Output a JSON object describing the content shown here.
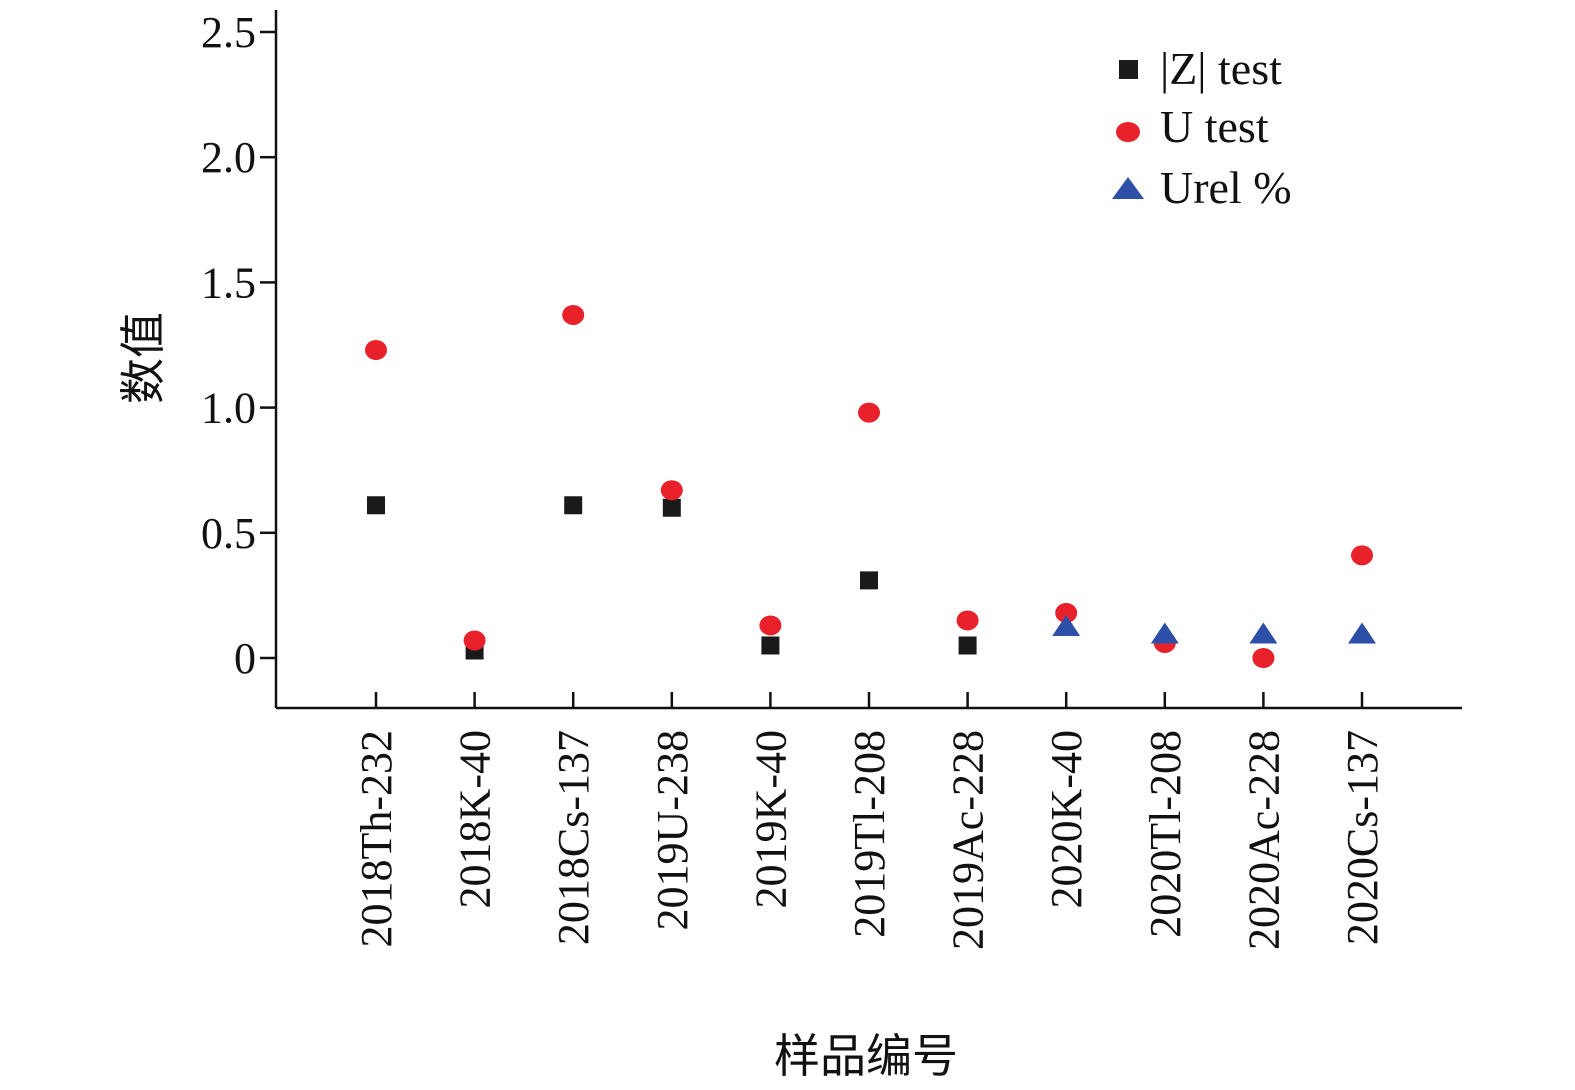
{
  "chart_data": {
    "type": "scatter",
    "xlabel": "样品编号",
    "ylabel": "数值",
    "ylim": [
      0,
      2.5
    ],
    "yticks": [
      "0",
      "0.5",
      "1.0",
      "1.5",
      "2.0",
      "2.5"
    ],
    "grid": false,
    "legend_position": "top-right",
    "categories": [
      "2018Th-232",
      "2018K-40",
      "2018Cs-137",
      "2019U-238",
      "2019K-40",
      "2019Tl-208",
      "2019Ac-228",
      "2020K-40",
      "2020Tl-208",
      "2020Ac-228",
      "2020Cs-137"
    ],
    "series": [
      {
        "name": "|Z| test",
        "marker": "square",
        "color": "#1a1a1a",
        "values": [
          0.61,
          0.03,
          0.61,
          0.6,
          0.05,
          0.31,
          0.05,
          null,
          null,
          null,
          null
        ]
      },
      {
        "name": "U test",
        "marker": "circle",
        "color": "#e8212b",
        "values": [
          1.23,
          0.07,
          1.37,
          0.67,
          0.13,
          0.98,
          0.15,
          0.18,
          0.06,
          0.0,
          0.41
        ]
      },
      {
        "name": "Urel %",
        "marker": "triangle",
        "color": "#2e4fa8",
        "values": [
          null,
          null,
          null,
          null,
          null,
          null,
          null,
          0.12,
          0.09,
          0.09,
          0.09
        ]
      }
    ]
  }
}
